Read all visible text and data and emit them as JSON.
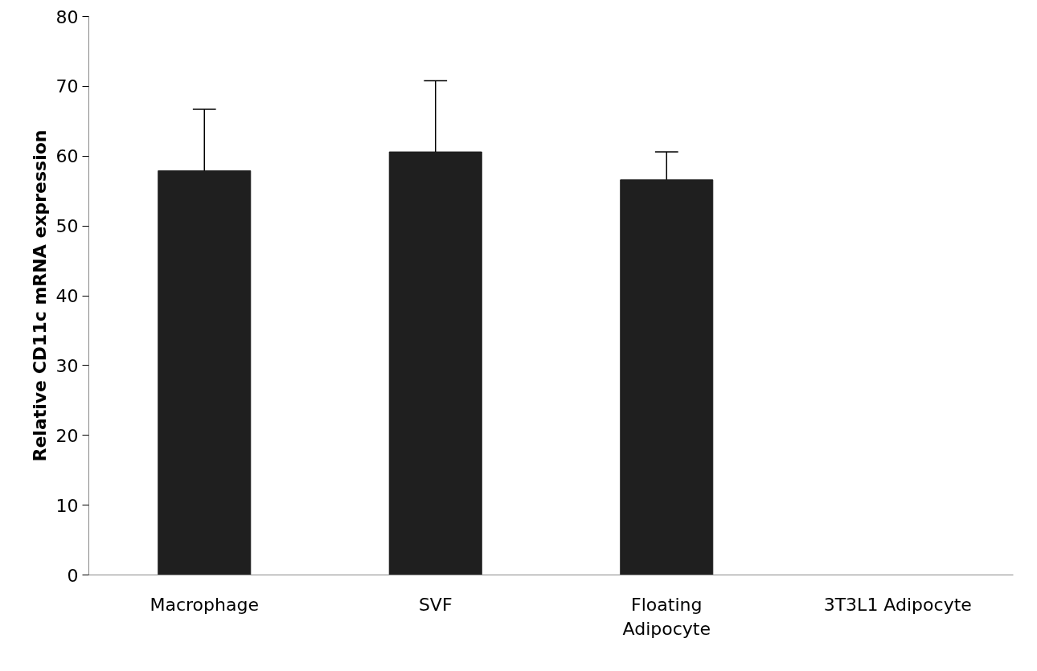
{
  "chart_data": {
    "type": "bar",
    "ylabel": "Relative CD11c mRNA expression",
    "categories": [
      "Macrophage",
      "SVF",
      "Floating Adipocyte",
      "3T3L1 Adipocyte"
    ],
    "values": [
      57.9,
      60.6,
      56.6,
      0
    ],
    "errors": [
      [
        57.9,
        66.7
      ],
      [
        60.6,
        70.8
      ],
      [
        56.6,
        60.6
      ],
      null
    ],
    "color": "#1f1f1f",
    "ylim": [
      0,
      80
    ],
    "yticks": [
      0,
      10,
      20,
      30,
      40,
      50,
      60,
      70,
      80
    ],
    "grid": false
  }
}
